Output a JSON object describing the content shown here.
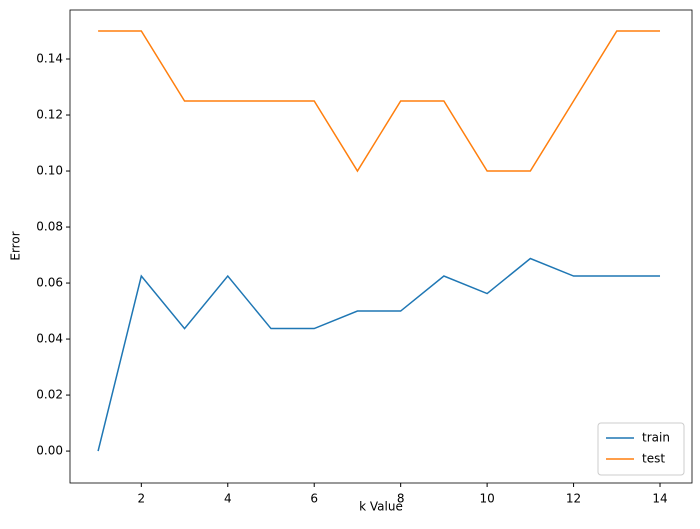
{
  "chart_data": {
    "type": "line",
    "x": [
      1,
      2,
      3,
      4,
      5,
      6,
      7,
      8,
      9,
      10,
      11,
      12,
      13,
      14
    ],
    "series": [
      {
        "name": "train",
        "color": "#1f77b4",
        "values": [
          0,
          0.0625,
          0.04375,
          0.0625,
          0.04375,
          0.04375,
          0.05,
          0.05,
          0.0625,
          0.05625,
          0.06875,
          0.0625,
          0.0625,
          0.0625
        ]
      },
      {
        "name": "test",
        "color": "#ff7f0e",
        "values": [
          0.15,
          0.15,
          0.125,
          0.125,
          0.125,
          0.125,
          0.1,
          0.125,
          0.125,
          0.1,
          0.1,
          0.125,
          0.15,
          0.15
        ]
      }
    ],
    "xlabel": "k Value",
    "ylabel": "Error",
    "xlim": [
      0.35,
      14.74
    ],
    "ylim": [
      -0.0114,
      0.1575
    ],
    "xticks": [
      2,
      4,
      6,
      8,
      10,
      12,
      14
    ],
    "yticks": [
      {
        "value": 0,
        "label": "0.00"
      },
      {
        "value": 0.02,
        "label": "0.02"
      },
      {
        "value": 0.04,
        "label": "0.04"
      },
      {
        "value": 0.06,
        "label": "0.06"
      },
      {
        "value": 0.08,
        "label": "0.08"
      },
      {
        "value": 0.1,
        "label": "0.10"
      },
      {
        "value": 0.12,
        "label": "0.12"
      },
      {
        "value": 0.14,
        "label": "0.14"
      }
    ],
    "legend": "lower right"
  }
}
